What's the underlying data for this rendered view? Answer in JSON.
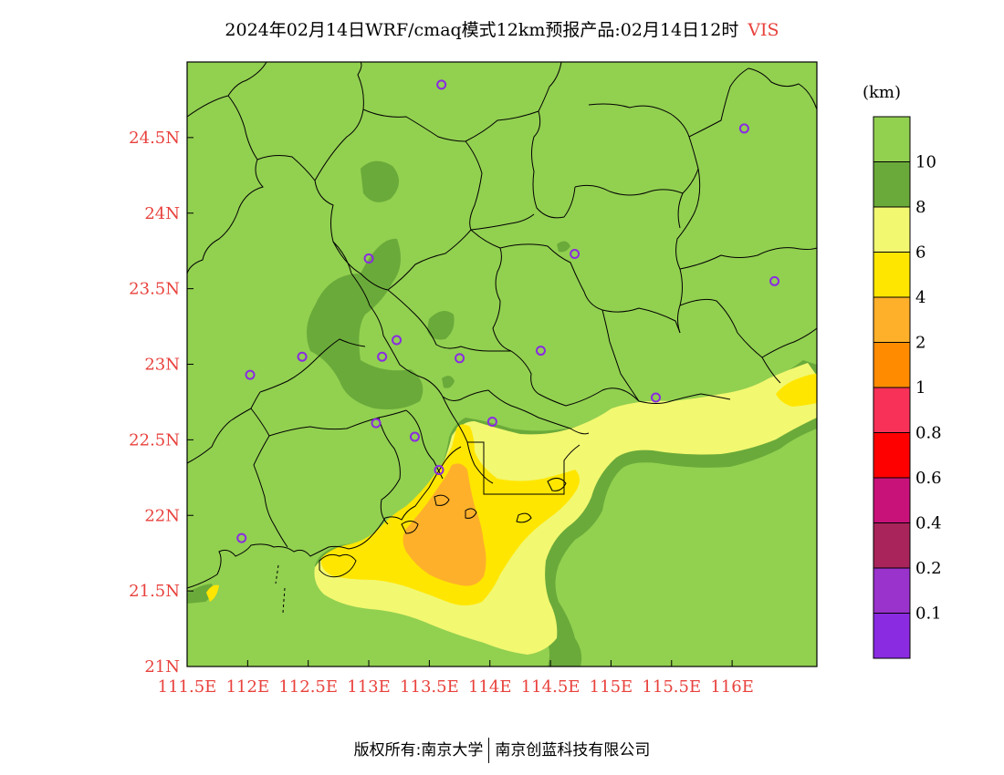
{
  "title": {
    "main": "2024年02月14日WRF/cmaq模式12km预报产品:02月14日12时",
    "variable": "VIS"
  },
  "map": {
    "lon_range": [
      111.5,
      116.7
    ],
    "lat_range": [
      21.0,
      25.0
    ],
    "x_ticks": [
      {
        "value": 111.5,
        "label": "111.5E"
      },
      {
        "value": 112.0,
        "label": "112E"
      },
      {
        "value": 112.5,
        "label": "112.5E"
      },
      {
        "value": 113.0,
        "label": "113E"
      },
      {
        "value": 113.5,
        "label": "113.5E"
      },
      {
        "value": 114.0,
        "label": "114E"
      },
      {
        "value": 114.5,
        "label": "114.5E"
      },
      {
        "value": 115.0,
        "label": "115E"
      },
      {
        "value": 115.5,
        "label": "115.5E"
      },
      {
        "value": 116.0,
        "label": "116E"
      }
    ],
    "y_ticks": [
      {
        "value": 21.0,
        "label": "21N"
      },
      {
        "value": 21.5,
        "label": "21.5N"
      },
      {
        "value": 22.0,
        "label": "22N"
      },
      {
        "value": 22.5,
        "label": "22.5N"
      },
      {
        "value": 23.0,
        "label": "23N"
      },
      {
        "value": 23.5,
        "label": "23.5N"
      },
      {
        "value": 24.0,
        "label": "24N"
      },
      {
        "value": 24.5,
        "label": "24.5N"
      }
    ],
    "tick_label_color": "#e8413c",
    "base_color": "#92d050",
    "stations": [
      {
        "lon": 113.6,
        "lat": 24.85
      },
      {
        "lon": 116.1,
        "lat": 24.56
      },
      {
        "lon": 113.0,
        "lat": 23.7
      },
      {
        "lon": 114.7,
        "lat": 23.73
      },
      {
        "lon": 116.35,
        "lat": 23.55
      },
      {
        "lon": 113.23,
        "lat": 23.16
      },
      {
        "lon": 112.45,
        "lat": 23.05
      },
      {
        "lon": 113.11,
        "lat": 23.05
      },
      {
        "lon": 113.75,
        "lat": 23.04
      },
      {
        "lon": 114.42,
        "lat": 23.09
      },
      {
        "lon": 112.02,
        "lat": 22.93
      },
      {
        "lon": 115.37,
        "lat": 22.78
      },
      {
        "lon": 113.06,
        "lat": 22.61
      },
      {
        "lon": 113.38,
        "lat": 22.52
      },
      {
        "lon": 114.02,
        "lat": 22.62
      },
      {
        "lon": 113.58,
        "lat": 22.3
      },
      {
        "lon": 111.95,
        "lat": 21.85
      }
    ]
  },
  "legend": {
    "unit": "(km)",
    "bins": [
      {
        "label": "",
        "color": "#92d050"
      },
      {
        "label": "10",
        "color": "#6aaa3a"
      },
      {
        "label": "8",
        "color": "#f2f870"
      },
      {
        "label": "6",
        "color": "#ffe600"
      },
      {
        "label": "4",
        "color": "#ffb02a"
      },
      {
        "label": "2",
        "color": "#ff8c00"
      },
      {
        "label": "1",
        "color": "#f73157"
      },
      {
        "label": "0.8",
        "color": "#ff0000"
      },
      {
        "label": "0.6",
        "color": "#c8127a"
      },
      {
        "label": "0.4",
        "color": "#a8245a"
      },
      {
        "label": "0.2",
        "color": "#9933cc"
      },
      {
        "label": "0.1",
        "color": "#8a2be2"
      }
    ]
  },
  "footer": {
    "left": "版权所有:南京大学",
    "right": "南京创蓝科技有限公司"
  }
}
